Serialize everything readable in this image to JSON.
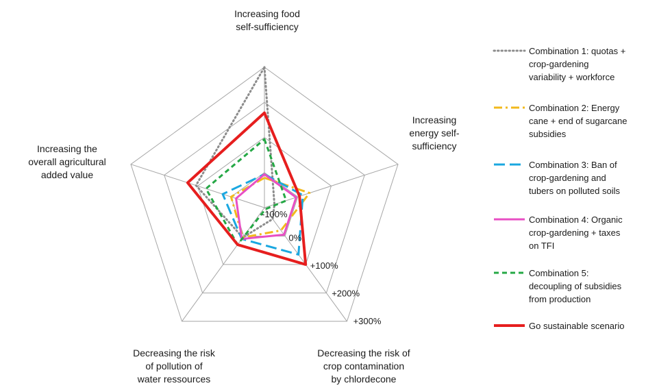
{
  "chart_data": {
    "type": "radar",
    "axes": [
      [
        "Increasing food",
        "self-sufficiency"
      ],
      [
        "Increasing",
        "energy self-",
        "sufficiency"
      ],
      [
        "Decreasing the risk of",
        "crop contamination",
        "by chlordecone"
      ],
      [
        "Decreasing the risk",
        "of pollution of",
        "water ressources"
      ],
      [
        "Increasing the",
        "overall agricultural",
        "added value"
      ]
    ],
    "ticks": [
      "-100%",
      "0%",
      "+100%",
      "+200%",
      "+300%"
    ],
    "range": [
      -100,
      300
    ],
    "series": [
      {
        "name": [
          "Combination 1: quotas +",
          "crop-gardening",
          "variability + workforce"
        ],
        "color": "#8c8c8c",
        "dash": "dotted",
        "values": [
          300,
          -70,
          -60,
          5,
          105
        ]
      },
      {
        "name": [
          "Combination 2: Energy",
          "cane + end of sugarcane",
          "subsidies"
        ],
        "color": "#f2b91c",
        "dash": "dashdot",
        "values": [
          -15,
          35,
          -20,
          5,
          0
        ]
      },
      {
        "name": [
          "Combination 3: Ban of",
          "crop-gardening and",
          "tubers on polluted soils"
        ],
        "color": "#1aa7e0",
        "dash": "longdash",
        "values": [
          -5,
          15,
          65,
          10,
          25
        ]
      },
      {
        "name": [
          "Combination 4: Organic",
          "crop-gardening + taxes",
          "on TFI"
        ],
        "color": "#e84fc4",
        "dash": "solid",
        "values": [
          -5,
          -5,
          -5,
          10,
          -15
        ]
      },
      {
        "name": [
          "Combination 5:",
          "decoupling of subsidies",
          "from production"
        ],
        "color": "#25a845",
        "dash": "dashed",
        "values": [
          95,
          -35,
          -95,
          30,
          75
        ]
      },
      {
        "name": [
          "Go sustainable scenario"
        ],
        "color": "#e61e1e",
        "dash": "solid",
        "values": [
          170,
          5,
          100,
          30,
          130
        ]
      }
    ]
  }
}
